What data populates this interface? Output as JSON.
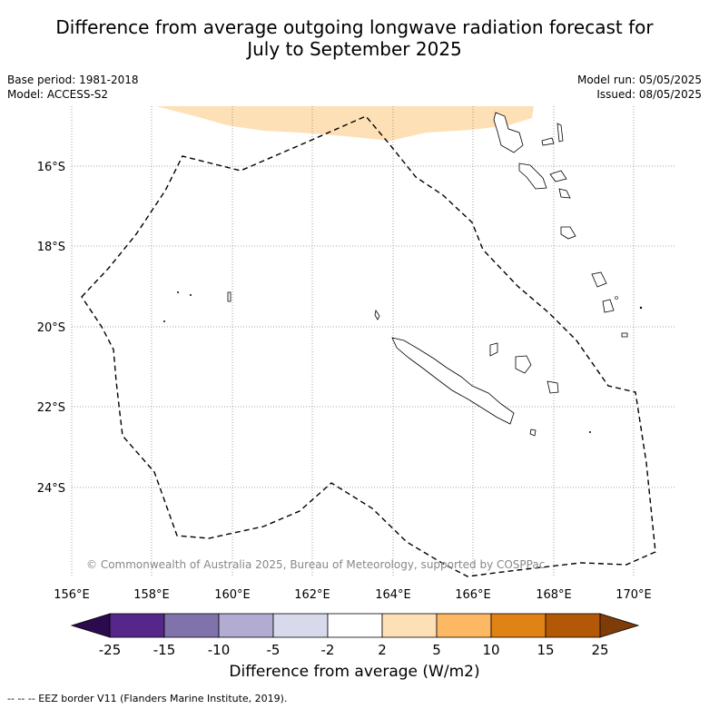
{
  "title_line1": "Difference from average outgoing longwave radiation forecast for",
  "title_line2": "July to September 2025",
  "meta": {
    "base_period": "Base period: 1981-2018",
    "model": "Model: ACCESS-S2",
    "model_run": "Model run: 05/05/2025",
    "issued": "Issued: 08/05/2025"
  },
  "copyright": "© Commonwealth of Australia 2025, Bureau of Meteorology, supported by COSPPac",
  "axes": {
    "lon_labels": [
      "156°E",
      "158°E",
      "160°E",
      "162°E",
      "164°E",
      "166°E",
      "168°E",
      "170°E"
    ],
    "lat_labels": [
      "16°S",
      "18°S",
      "20°S",
      "22°S",
      "24°S"
    ]
  },
  "colorbar": {
    "label": "Difference from average (W/m2)",
    "ticks": [
      "-25",
      "-15",
      "-10",
      "-5",
      "-2",
      "2",
      "5",
      "10",
      "15",
      "25"
    ],
    "colors": [
      "#2d0a4e",
      "#542788",
      "#8073ac",
      "#b2abd2",
      "#d8daeb",
      "#ffffff",
      "#fee0b6",
      "#fdb863",
      "#e08214",
      "#b35806",
      "#7f3b08"
    ]
  },
  "footer": "--  --  -- EEZ border V11 (Flanders Marine Institute, 2019)."
}
